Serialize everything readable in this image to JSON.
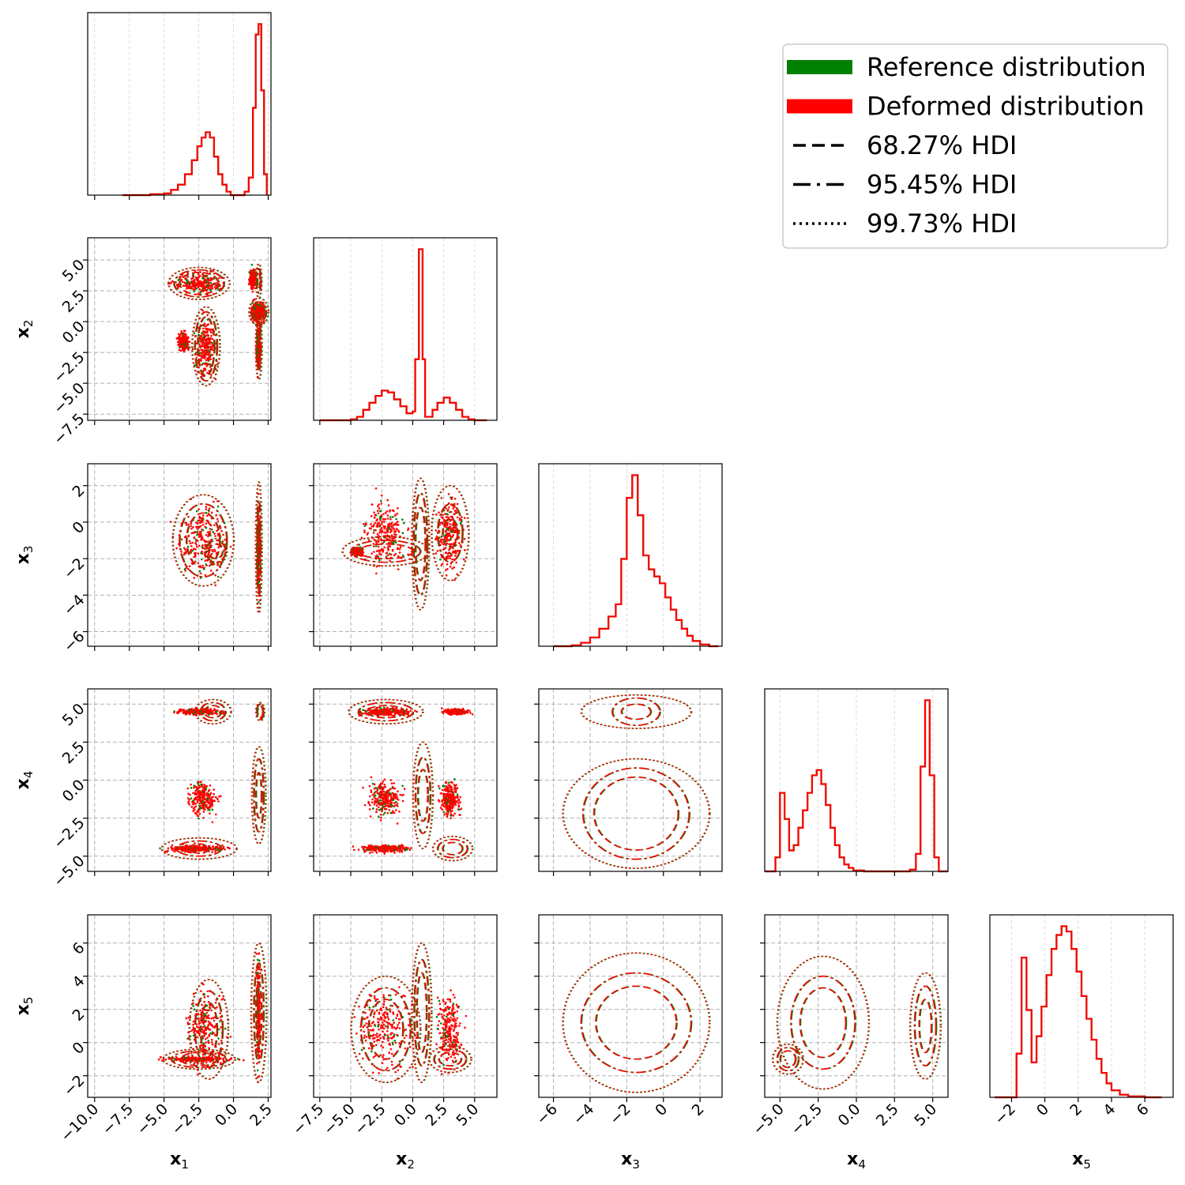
{
  "chart_data": {
    "type": "corner",
    "variables": [
      "x1",
      "x2",
      "x3",
      "x4",
      "x5"
    ],
    "axis_labels": [
      {
        "main": "x",
        "sub": "1"
      },
      {
        "main": "x",
        "sub": "2"
      },
      {
        "main": "x",
        "sub": "3"
      },
      {
        "main": "x",
        "sub": "4"
      },
      {
        "main": "x",
        "sub": "5"
      }
    ],
    "ranges": [
      [
        -10.5,
        2.7
      ],
      [
        -8.0,
        6.8
      ],
      [
        -6.8,
        3.2
      ],
      [
        -6.0,
        6.0
      ],
      [
        -3.3,
        7.7
      ]
    ],
    "ticks": [
      [
        -10.0,
        -7.5,
        -5.0,
        -2.5,
        0.0,
        2.5
      ],
      [
        -7.5,
        -5.0,
        -2.5,
        0.0,
        2.5,
        5.0
      ],
      [
        -6,
        -4,
        -2,
        0,
        2
      ],
      [
        -5.0,
        -2.5,
        0.0,
        2.5,
        5.0
      ],
      [
        -2,
        0,
        2,
        4,
        6
      ]
    ],
    "tick_labels": [
      [
        "−10.0",
        "−7.5",
        "−5.0",
        "−2.5",
        "0.0",
        "2.5"
      ],
      [
        "−7.5",
        "−5.0",
        "−2.5",
        "0.0",
        "2.5",
        "5.0"
      ],
      [
        "−6",
        "−4",
        "−2",
        "0",
        "2"
      ],
      [
        "−5.0",
        "−2.5",
        "0.0",
        "2.5",
        "5.0"
      ],
      [
        "−2",
        "0",
        "2",
        "4",
        "6"
      ]
    ],
    "histograms": [
      {
        "variable": "x1",
        "x": [
          -8,
          -7,
          -6,
          -5,
          -4.5,
          -4,
          -3.5,
          -3,
          -2.6,
          -2.3,
          -2.0,
          -1.7,
          -1.4,
          -1.1,
          -0.8,
          -0.5,
          -0.2,
          0.3,
          0.8,
          1.1,
          1.4,
          1.6,
          1.8,
          2.0,
          2.2,
          2.4
        ],
        "y": [
          0.0,
          0.0,
          0.005,
          0.01,
          0.03,
          0.06,
          0.12,
          0.2,
          0.28,
          0.33,
          0.36,
          0.33,
          0.22,
          0.12,
          0.06,
          0.02,
          0.0,
          0.0,
          0.02,
          0.1,
          0.5,
          0.92,
          0.98,
          0.6,
          0.12,
          0.0
        ]
      },
      {
        "variable": "x2",
        "x": [
          -7.5,
          -6,
          -5,
          -4.5,
          -4,
          -3.5,
          -3,
          -2.5,
          -2,
          -1.5,
          -1,
          -0.5,
          0,
          0.2,
          0.5,
          0.8,
          1.0,
          1.3,
          1.6,
          2.0,
          2.5,
          3.0,
          3.5,
          4.0,
          4.5,
          5.0,
          6.0
        ],
        "y": [
          0.0,
          0.0,
          0.005,
          0.02,
          0.06,
          0.1,
          0.14,
          0.17,
          0.16,
          0.12,
          0.08,
          0.04,
          0.05,
          0.35,
          0.98,
          0.35,
          0.02,
          0.02,
          0.06,
          0.1,
          0.13,
          0.1,
          0.06,
          0.02,
          0.005,
          0.0,
          0.0
        ]
      },
      {
        "variable": "x3",
        "x": [
          -6,
          -5,
          -4.5,
          -4,
          -3.5,
          -3,
          -2.6,
          -2.3,
          -2.0,
          -1.7,
          -1.4,
          -1.1,
          -0.8,
          -0.5,
          -0.2,
          0.1,
          0.4,
          0.7,
          1.0,
          1.3,
          1.6,
          2.0,
          2.5,
          3.0
        ],
        "y": [
          0.0,
          0.005,
          0.02,
          0.05,
          0.1,
          0.17,
          0.24,
          0.5,
          0.85,
          0.98,
          0.75,
          0.52,
          0.44,
          0.4,
          0.36,
          0.28,
          0.21,
          0.15,
          0.1,
          0.06,
          0.03,
          0.01,
          0.0,
          0.0
        ]
      },
      {
        "variable": "x4",
        "x": [
          -6,
          -5.3,
          -5.0,
          -4.7,
          -4.4,
          -4.1,
          -3.8,
          -3.5,
          -3.2,
          -2.9,
          -2.6,
          -2.3,
          -2.0,
          -1.7,
          -1.4,
          -1.1,
          -0.8,
          -0.5,
          -0.2,
          0.5,
          2.5,
          3.5,
          3.9,
          4.2,
          4.5,
          4.8,
          5.1,
          5.4,
          6
        ],
        "y": [
          0.0,
          0.08,
          0.45,
          0.3,
          0.12,
          0.15,
          0.25,
          0.35,
          0.45,
          0.55,
          0.58,
          0.5,
          0.38,
          0.25,
          0.15,
          0.08,
          0.04,
          0.02,
          0.005,
          0.0,
          0.0,
          0.01,
          0.1,
          0.6,
          0.98,
          0.55,
          0.08,
          0.0,
          0.0
        ]
      },
      {
        "variable": "x5",
        "x": [
          -3,
          -2,
          -1.7,
          -1.4,
          -1.1,
          -0.8,
          -0.5,
          -0.2,
          0.1,
          0.4,
          0.7,
          1.0,
          1.3,
          1.6,
          1.9,
          2.2,
          2.5,
          2.8,
          3.1,
          3.4,
          3.7,
          4.0,
          4.5,
          5.0,
          6.0,
          7.0
        ],
        "y": [
          0.0,
          0.0,
          0.25,
          0.8,
          0.5,
          0.2,
          0.35,
          0.52,
          0.7,
          0.85,
          0.93,
          0.98,
          0.95,
          0.85,
          0.72,
          0.58,
          0.45,
          0.33,
          0.22,
          0.14,
          0.08,
          0.04,
          0.015,
          0.005,
          0.0,
          0.0
        ]
      }
    ],
    "pair_panels": [
      {
        "x": "x1",
        "y": "x2",
        "scatter_regions": [
          [
            -2.5,
            3.1,
            2.2,
            1.2
          ],
          [
            -2.0,
            -2.0,
            0.9,
            3.0
          ],
          [
            -3.6,
            -1.6,
            0.5,
            0.9
          ],
          [
            1.8,
            0.8,
            0.6,
            1.1
          ],
          [
            1.8,
            -2.0,
            0.2,
            2.6
          ],
          [
            1.4,
            3.5,
            0.3,
            1.0
          ]
        ],
        "contours": [
          {
            "cx": -2.5,
            "cy": 3.1,
            "rx": [
              1.4,
              1.8,
              2.2
            ],
            "ry": [
              0.9,
              1.1,
              1.3
            ]
          },
          {
            "cx": -2.0,
            "cy": -2.0,
            "rx": [
              0.6,
              0.8,
              1.0
            ],
            "ry": [
              2.4,
              2.8,
              3.2
            ]
          },
          {
            "cx": 1.8,
            "cy": 0.8,
            "rx": [
              0.4,
              0.55,
              0.7
            ],
            "ry": [
              0.6,
              0.8,
              1.1
            ]
          },
          {
            "cx": 1.8,
            "cy": -2.0,
            "rx": [
              0.1,
              0.15,
              0.22
            ],
            "ry": [
              1.2,
              1.9,
              2.7
            ]
          },
          {
            "cx": 1.8,
            "cy": 3.3,
            "rx": [
              0.1,
              0.15,
              0.2
            ],
            "ry": [
              0.6,
              1.0,
              1.4
            ]
          }
        ]
      },
      {
        "x": "x1",
        "y": "x3",
        "scatter_regions": [
          [
            -2.2,
            -1.0,
            2.2,
            2.6
          ],
          [
            1.8,
            -1.4,
            0.15,
            3.2
          ]
        ],
        "contours": [
          {
            "cx": -2.2,
            "cy": -1.0,
            "rx": [
              1.2,
              1.7,
              2.2
            ],
            "ry": [
              1.5,
              2.0,
              2.5
            ]
          },
          {
            "cx": -1.3,
            "cy": -1.6,
            "rx": [
              0.5,
              0.7,
              0.8
            ],
            "ry": [
              0.4,
              0.6,
              0.7
            ]
          },
          {
            "cx": 1.8,
            "cy": -1.4,
            "rx": [
              0.08,
              0.13,
              0.22
            ],
            "ry": [
              1.5,
              2.6,
              3.6
            ]
          }
        ]
      },
      {
        "x": "x2",
        "y": "x3",
        "scatter_regions": [
          [
            -2.2,
            -0.6,
            2.2,
            2.3
          ],
          [
            3.0,
            -0.6,
            1.5,
            2.5
          ],
          [
            -4.5,
            -1.6,
            0.6,
            0.3
          ]
        ],
        "contours": [
          {
            "cx": -2.2,
            "cy": -1.6,
            "rx": [
              2.2,
              2.8,
              3.5
            ],
            "ry": [
              0.4,
              0.6,
              0.8
            ]
          },
          {
            "cx": 0.6,
            "cy": -1.2,
            "rx": [
              0.4,
              0.55,
              0.7
            ],
            "ry": [
              2.0,
              2.8,
              3.6
            ]
          },
          {
            "cx": 3.0,
            "cy": -0.6,
            "rx": [
              0.6,
              1.0,
              1.5
            ],
            "ry": [
              0.8,
              1.6,
              2.6
            ]
          }
        ]
      },
      {
        "x": "x1",
        "y": "x4",
        "scatter_regions": [
          [
            -2.2,
            -1.2,
            1.3,
            1.4
          ],
          [
            -2.5,
            4.5,
            2.2,
            0.25
          ],
          [
            -2.8,
            -4.5,
            2.8,
            0.3
          ]
        ],
        "contours": [
          {
            "cx": -1.5,
            "cy": 4.5,
            "rx": [
              0.6,
              0.9,
              1.3
            ],
            "ry": [
              0.4,
              0.6,
              0.8
            ]
          },
          {
            "cx": -2.5,
            "cy": -4.5,
            "rx": [
              0.7,
              1.6,
              2.7
            ],
            "ry": [
              0.3,
              0.5,
              0.7
            ]
          },
          {
            "cx": 1.8,
            "cy": -1.0,
            "rx": [
              0.2,
              0.35,
              0.5
            ],
            "ry": [
              1.5,
              2.4,
              3.2
            ]
          },
          {
            "cx": 1.9,
            "cy": 4.5,
            "rx": [
              0.2,
              0.25,
              0.3
            ],
            "ry": [
              0.4,
              0.5,
              0.6
            ]
          }
        ]
      },
      {
        "x": "x2",
        "y": "x4",
        "scatter_regions": [
          [
            -2.2,
            -1.2,
            1.8,
            1.5
          ],
          [
            3.0,
            -1.2,
            1.1,
            1.5
          ],
          [
            -2.2,
            4.5,
            2.8,
            0.3
          ],
          [
            -2.2,
            -4.5,
            2.8,
            0.3
          ],
          [
            3.5,
            4.5,
            1.3,
            0.25
          ]
        ],
        "contours": [
          {
            "cx": -2.2,
            "cy": 4.5,
            "rx": [
              1.5,
              2.2,
              3.0
            ],
            "ry": [
              0.4,
              0.6,
              0.8
            ]
          },
          {
            "cx": 0.8,
            "cy": -1.0,
            "rx": [
              0.4,
              0.6,
              0.8
            ],
            "ry": [
              1.7,
              2.5,
              3.5
            ]
          },
          {
            "cx": 3.2,
            "cy": -4.5,
            "rx": [
              0.8,
              1.2,
              1.6
            ],
            "ry": [
              0.4,
              0.6,
              0.8
            ]
          }
        ]
      },
      {
        "x": "x3",
        "y": "x4",
        "scatter_regions": [],
        "contours": [
          {
            "cx": -1.5,
            "cy": 4.5,
            "rx": [
              0.8,
              1.3,
              3.0
            ],
            "ry": [
              0.5,
              0.9,
              1.1
            ]
          },
          {
            "cx": -1.5,
            "cy": -2.2,
            "rx": [
              2.3,
              2.9,
              4.0
            ],
            "ry": [
              2.4,
              3.0,
              3.6
            ]
          }
        ]
      },
      {
        "x": "x1",
        "y": "x5",
        "scatter_regions": [
          [
            -2.0,
            0.8,
            1.8,
            2.9
          ],
          [
            1.8,
            1.8,
            0.2,
            4.0
          ],
          [
            -2.5,
            -1.0,
            3.0,
            0.2
          ]
        ],
        "contours": [
          {
            "cx": -1.8,
            "cy": 0.8,
            "rx": [
              0.6,
              1.0,
              1.4
            ],
            "ry": [
              1.6,
              2.3,
              3.0
            ]
          },
          {
            "cx": -2.5,
            "cy": -1.0,
            "rx": [
              1.3,
              2.0,
              2.6
            ],
            "ry": [
              0.4,
              0.5,
              0.6
            ]
          },
          {
            "cx": 1.8,
            "cy": 1.8,
            "rx": [
              0.2,
              0.35,
              0.55
            ],
            "ry": [
              1.8,
              3.0,
              4.2
            ]
          }
        ]
      },
      {
        "x": "x2",
        "y": "x5",
        "scatter_regions": [
          [
            -2.2,
            0.8,
            3.0,
            3.0
          ],
          [
            3.0,
            0.8,
            1.3,
            2.8
          ]
        ],
        "contours": [
          {
            "cx": -2.2,
            "cy": 0.8,
            "rx": [
              1.4,
              2.0,
              2.8
            ],
            "ry": [
              1.8,
              2.5,
              3.2
            ]
          },
          {
            "cx": 0.7,
            "cy": 1.8,
            "rx": [
              0.4,
              0.6,
              0.8
            ],
            "ry": [
              2.4,
              3.2,
              4.2
            ]
          },
          {
            "cx": 3.0,
            "cy": -1.0,
            "rx": [
              0.9,
              1.3,
              1.7
            ],
            "ry": [
              0.4,
              0.6,
              0.8
            ]
          }
        ]
      },
      {
        "x": "x3",
        "y": "x5",
        "scatter_regions": [],
        "contours": [
          {
            "cx": -1.5,
            "cy": 1.2,
            "rx": [
              2.2,
              3.0,
              4.0
            ],
            "ry": [
              2.2,
              3.0,
              4.2
            ]
          }
        ]
      },
      {
        "x": "x4",
        "y": "x5",
        "scatter_regions": [],
        "contours": [
          {
            "cx": -2.2,
            "cy": 1.2,
            "rx": [
              1.5,
              2.1,
              3.0
            ],
            "ry": [
              2.1,
              2.8,
              4.0
            ]
          },
          {
            "cx": -4.5,
            "cy": -1.0,
            "rx": [
              0.5,
              0.7,
              1.0
            ],
            "ry": [
              0.5,
              0.7,
              0.9
            ]
          },
          {
            "cx": 4.5,
            "cy": 1.0,
            "rx": [
              0.4,
              0.7,
              1.0
            ],
            "ry": [
              1.6,
              2.4,
              3.2
            ]
          }
        ]
      }
    ],
    "legend": {
      "position": "top-right",
      "entries": [
        {
          "label": "Reference distribution",
          "style": "patch",
          "color": "#008000"
        },
        {
          "label": "Deformed distribution",
          "style": "patch",
          "color": "#ff0000"
        },
        {
          "label": "68.27% HDI",
          "style": "dashed",
          "color": "#000000"
        },
        {
          "label": "95.45% HDI",
          "style": "dashdot",
          "color": "#000000"
        },
        {
          "label": "99.73% HDI",
          "style": "dotted",
          "color": "#000000"
        }
      ]
    },
    "colors": {
      "reference": "#008000",
      "deformed": "#ff0000"
    },
    "grid": true
  }
}
